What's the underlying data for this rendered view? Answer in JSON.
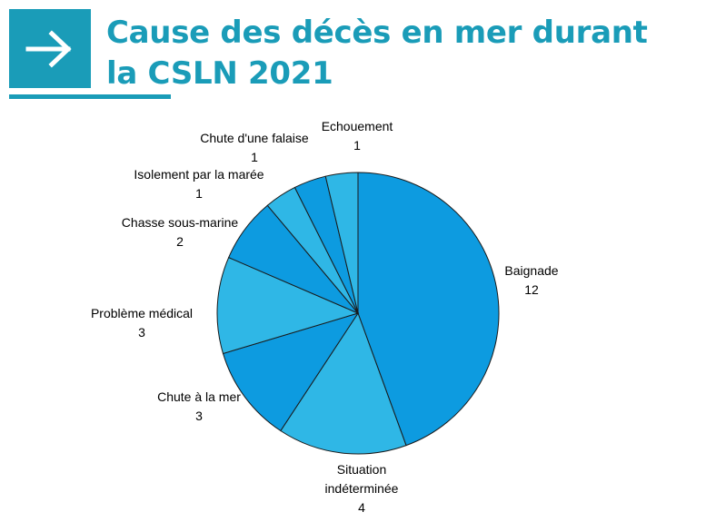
{
  "header": {
    "arrow_icon": "arrow-right-icon",
    "title_line1": "Cause des décès en mer durant",
    "title_line2": "la CSLN 2021"
  },
  "colors": {
    "accent": "#1a9cb8",
    "slice_dark": "#0d9be0",
    "slice_light": "#2fb7e6"
  },
  "chart_data": {
    "type": "pie",
    "title": "",
    "slices": [
      {
        "label": "Baignade",
        "value": 12,
        "color": "#0d9be0"
      },
      {
        "label": "Situation\nindéterminée",
        "value": 4,
        "color": "#2fb7e6"
      },
      {
        "label": "Chute à la mer",
        "value": 3,
        "color": "#0d9be0"
      },
      {
        "label": "Problème médical",
        "value": 3,
        "color": "#2fb7e6"
      },
      {
        "label": "Chasse sous-marine",
        "value": 2,
        "color": "#0d9be0"
      },
      {
        "label": "Isolement par la marée",
        "value": 1,
        "color": "#2fb7e6"
      },
      {
        "label": "Chute d'une falaise",
        "value": 1,
        "color": "#0d9be0"
      },
      {
        "label": "Echouement",
        "value": 1,
        "color": "#2fb7e6"
      }
    ]
  }
}
